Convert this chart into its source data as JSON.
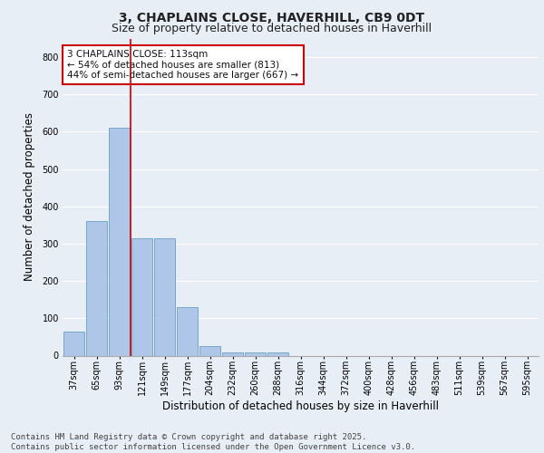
{
  "title_line1": "3, CHAPLAINS CLOSE, HAVERHILL, CB9 0DT",
  "title_line2": "Size of property relative to detached houses in Haverhill",
  "xlabel": "Distribution of detached houses by size in Haverhill",
  "ylabel": "Number of detached properties",
  "categories": [
    "37sqm",
    "65sqm",
    "93sqm",
    "121sqm",
    "149sqm",
    "177sqm",
    "204sqm",
    "232sqm",
    "260sqm",
    "288sqm",
    "316sqm",
    "344sqm",
    "372sqm",
    "400sqm",
    "428sqm",
    "456sqm",
    "483sqm",
    "511sqm",
    "539sqm",
    "567sqm",
    "595sqm"
  ],
  "values": [
    65,
    360,
    610,
    315,
    315,
    130,
    25,
    8,
    8,
    8,
    0,
    0,
    0,
    0,
    0,
    0,
    0,
    0,
    0,
    0,
    0
  ],
  "bar_color": "#aec6e8",
  "bar_edge_color": "#6a9fc8",
  "vline_color": "#cc0000",
  "vline_x_index": 2.5,
  "annotation_text": "3 CHAPLAINS CLOSE: 113sqm\n← 54% of detached houses are smaller (813)\n44% of semi-detached houses are larger (667) →",
  "annotation_box_color": "#ffffff",
  "annotation_box_edge": "#cc0000",
  "ylim": [
    0,
    850
  ],
  "yticks": [
    0,
    100,
    200,
    300,
    400,
    500,
    600,
    700,
    800
  ],
  "footer_text": "Contains HM Land Registry data © Crown copyright and database right 2025.\nContains public sector information licensed under the Open Government Licence v3.0.",
  "background_color": "#e8eef6",
  "plot_background": "#e8eef6",
  "grid_color": "#ffffff",
  "title_fontsize": 10,
  "subtitle_fontsize": 9,
  "tick_fontsize": 7,
  "label_fontsize": 8.5,
  "footer_fontsize": 6.5,
  "annotation_fontsize": 7.5
}
